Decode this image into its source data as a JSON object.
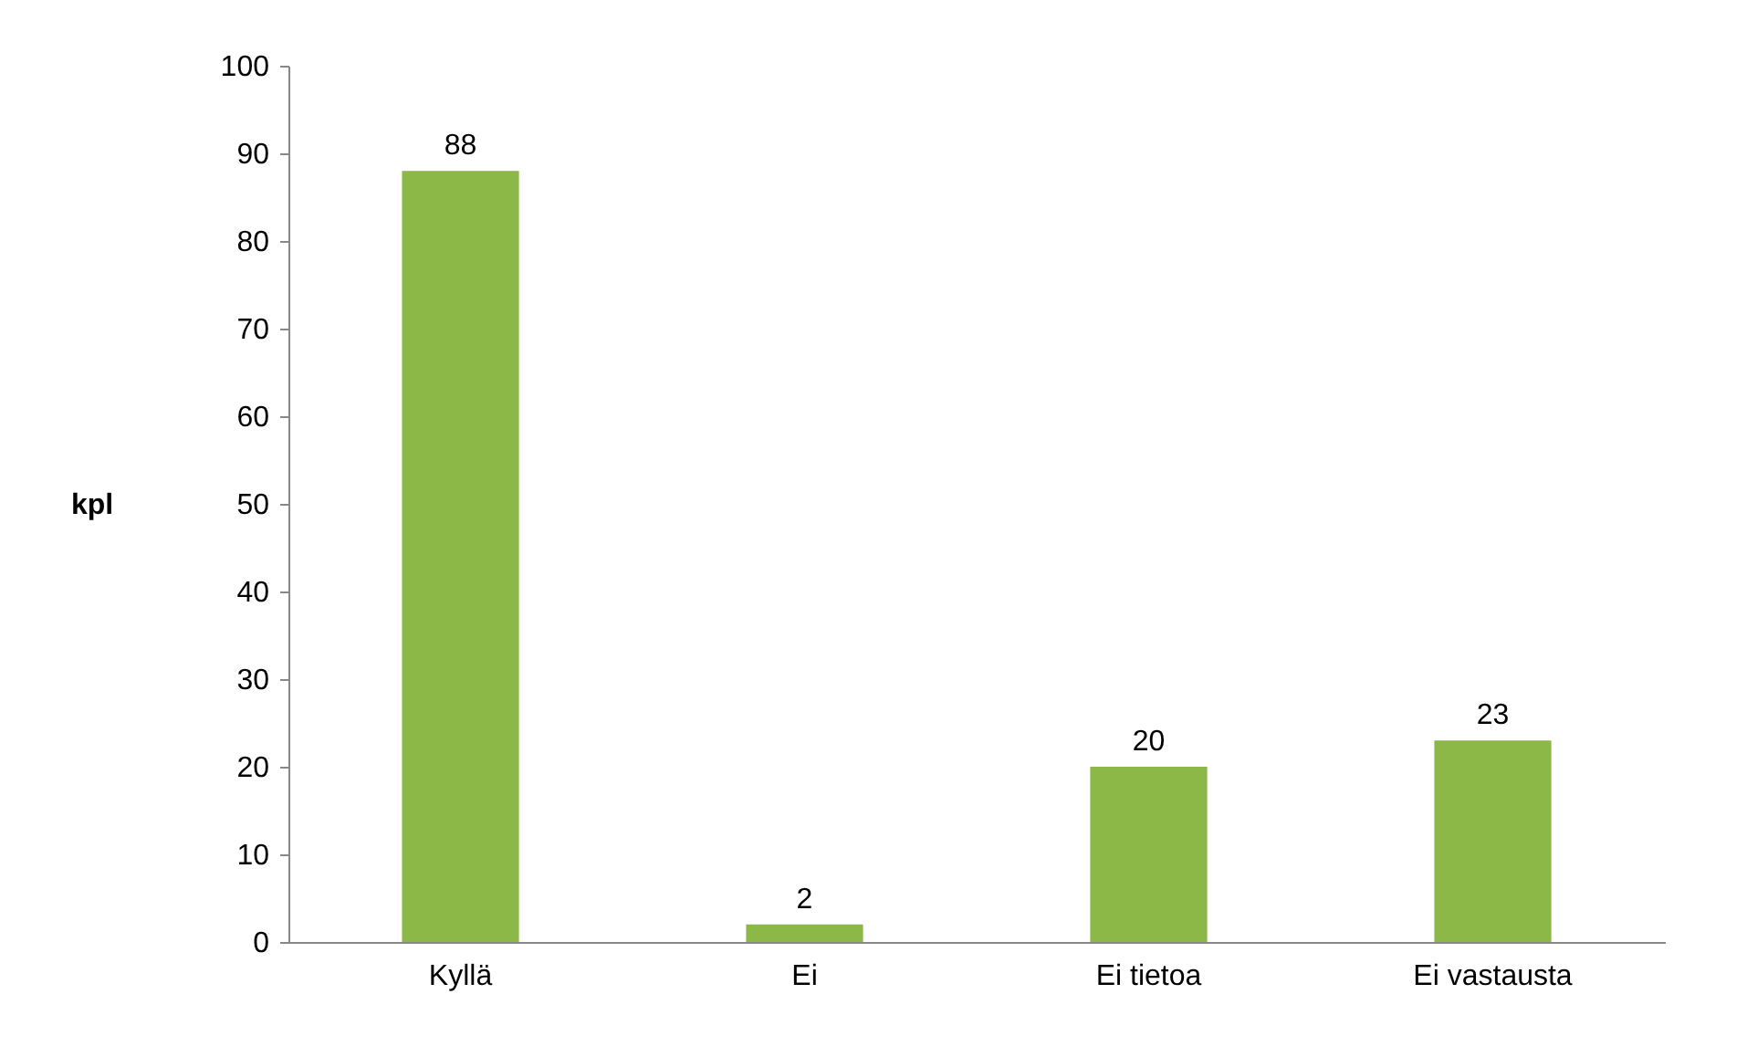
{
  "chart_data": {
    "type": "bar",
    "ylabel": "kpl",
    "categories": [
      "Kyllä",
      "Ei",
      "Ei tietoa",
      "Ei vastausta"
    ],
    "values": [
      88,
      2,
      20,
      23
    ],
    "color": "#8cb847",
    "ylim": [
      0,
      100
    ],
    "yticks": [
      0,
      10,
      20,
      30,
      40,
      50,
      60,
      70,
      80,
      90,
      100
    ],
    "data_labels": true,
    "grid": false
  }
}
